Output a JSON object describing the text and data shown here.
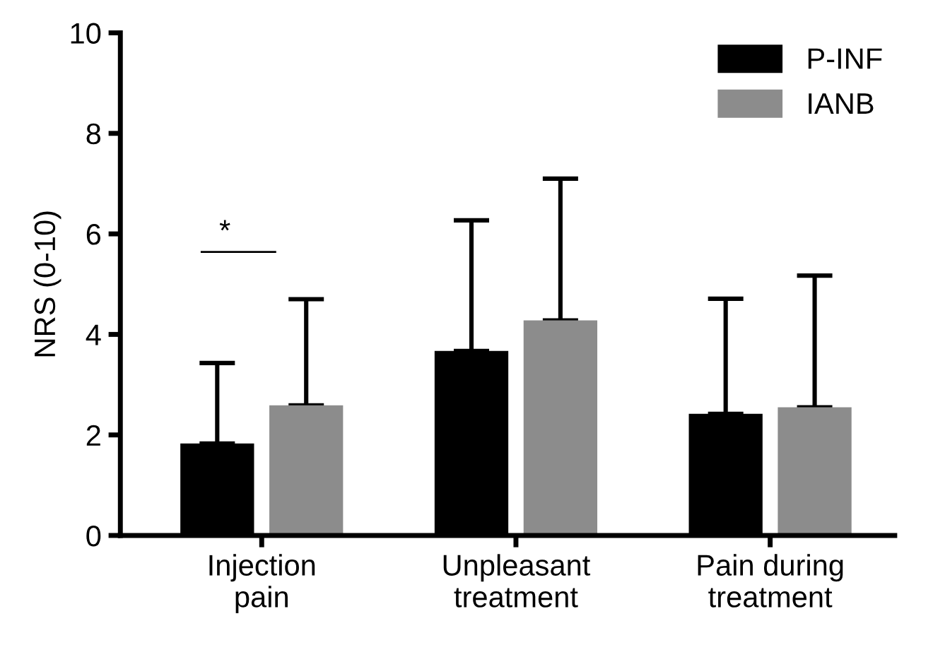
{
  "chart_data": {
    "type": "bar",
    "ylabel": "NRS (0-10)",
    "categories": [
      "Injection\npain",
      "Unpleasant\ntreatment",
      "Pain during\ntreatment"
    ],
    "series": [
      {
        "name": "P-INF",
        "color": "#000000",
        "values": [
          1.83,
          3.67,
          2.42
        ],
        "errors": [
          [
            1.83,
            3.43
          ],
          [
            3.67,
            6.27
          ],
          [
            2.42,
            4.71
          ]
        ]
      },
      {
        "name": "IANB",
        "color": "#8c8c8c",
        "values": [
          2.59,
          4.28,
          2.55
        ],
        "errors": [
          [
            2.59,
            4.7
          ],
          [
            4.28,
            7.1
          ],
          [
            2.55,
            5.17
          ]
        ]
      }
    ],
    "ylim": [
      0,
      10
    ],
    "yticks": [
      0,
      2,
      4,
      6,
      8,
      10
    ],
    "grid": false,
    "legend": "top right",
    "annotations": [
      "*"
    ]
  }
}
